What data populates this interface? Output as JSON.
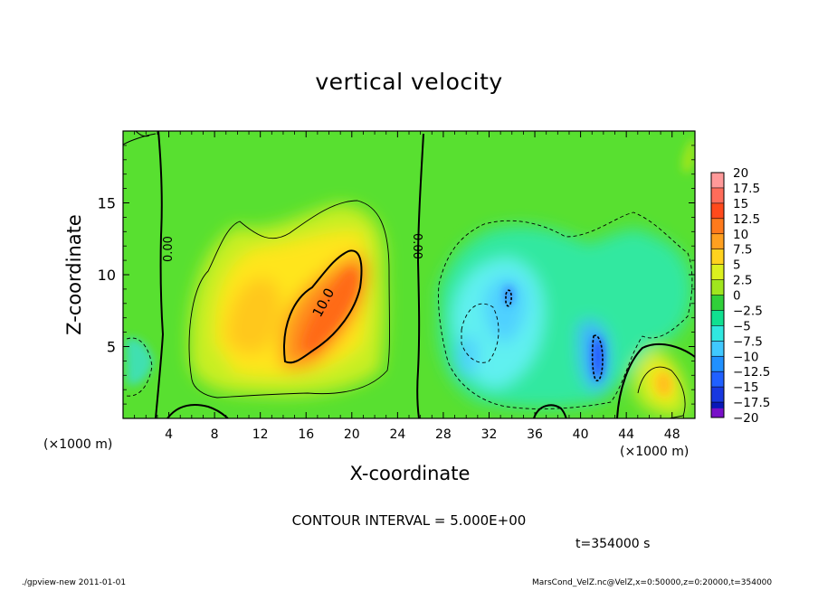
{
  "chart_data": {
    "type": "heatmap",
    "title": "vertical velocity",
    "xlabel": "X-coordinate",
    "ylabel": "Z-coordinate",
    "x_unit_left": "(×1000 m)",
    "x_unit_right": "(×1000 m)",
    "xlim": [
      0,
      50
    ],
    "ylim": [
      0,
      20
    ],
    "xticks": [
      4,
      8,
      12,
      16,
      20,
      24,
      28,
      32,
      36,
      40,
      44,
      48
    ],
    "yticks": [
      5,
      10,
      15
    ],
    "colorbar": {
      "labels": [
        "20",
        "17.5",
        "15",
        "12.5",
        "10",
        "7.5",
        "5",
        "2.5",
        "0",
        "−2.5",
        "−5",
        "−7.5",
        "−10",
        "−12.5",
        "−15",
        "−17.5",
        "−20"
      ],
      "colors": [
        "#ff9999",
        "#ff6c5a",
        "#ff4a1c",
        "#ff7a1c",
        "#ffa020",
        "#ffd21e",
        "#dcf01e",
        "#a0e61e",
        "#30d03a",
        "#10e090",
        "#30e8e0",
        "#40c8ff",
        "#2090ff",
        "#2060ff",
        "#1838e0",
        "#0818b8",
        "#7810c8"
      ]
    },
    "contour_labels": [
      "0.00",
      "0.00",
      "10.0"
    ],
    "features": [
      {
        "sign": "positive",
        "x": 18,
        "z": 9,
        "peak": 13
      },
      {
        "sign": "positive",
        "x": 47,
        "z": 3,
        "peak": 7.5
      },
      {
        "sign": "negative",
        "x": 41.5,
        "z": 4,
        "peak": -12.5
      },
      {
        "sign": "negative",
        "x": 33.5,
        "z": 8,
        "peak": -10
      }
    ],
    "contour_interval": "CONTOUR INTERVAL = 5.000E+00",
    "time": "t=354000 s"
  },
  "footer": {
    "left": "./gpview-new   2011-01-01",
    "right": "MarsCond_VelZ.nc@VelZ,x=0:50000,z=0:20000,t=354000"
  },
  "colors": {
    "background": "#30d03a",
    "frame": "#000000"
  }
}
